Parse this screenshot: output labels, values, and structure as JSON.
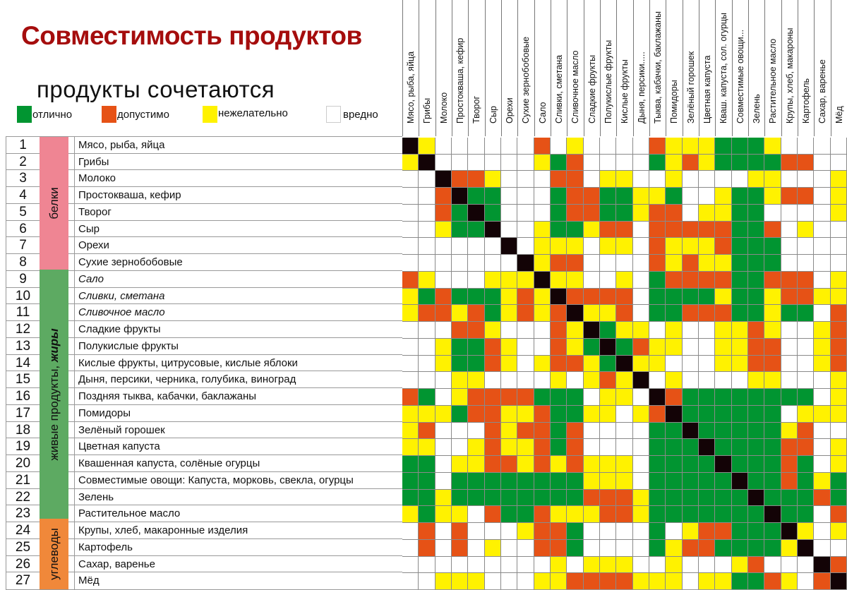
{
  "title": "Совместимость продуктов",
  "subtitle": "продукты сочетаются",
  "legend": [
    {
      "key": "G",
      "label": "отлично",
      "color": "#019531"
    },
    {
      "key": "O",
      "label": "допустимо",
      "color": "#e65216"
    },
    {
      "key": "Y",
      "label": "нежелательно",
      "color": "#fff200"
    },
    {
      "key": "W",
      "label": "вредно",
      "color": "#ffffff"
    }
  ],
  "diagonal_color": "#130306",
  "categories": [
    {
      "label": "белки",
      "rows": [
        1,
        8
      ],
      "color": "#ef8593"
    },
    {
      "label": "живые продукты, жиры",
      "label_plain": "живые продукты, ",
      "label_bold": "жиры",
      "rows": [
        9,
        23
      ],
      "color": "#5daa62"
    },
    {
      "label": "углеводы",
      "rows": [
        24,
        27
      ],
      "color": "#f0883a"
    }
  ],
  "rows": [
    {
      "n": "1",
      "name": "Мясо, рыба, яйца"
    },
    {
      "n": "2",
      "name": "Грибы"
    },
    {
      "n": "3",
      "name": "Молоко"
    },
    {
      "n": "4",
      "name": "Простокваша, кефир"
    },
    {
      "n": "5",
      "name": "Творог"
    },
    {
      "n": "6",
      "name": "Сыр"
    },
    {
      "n": "7",
      "name": "Орехи"
    },
    {
      "n": "8",
      "name": "Сухие зернобобовые"
    },
    {
      "n": "9",
      "name": "Сало",
      "italic": true
    },
    {
      "n": "10",
      "name": "Сливки, сметана",
      "italic": true
    },
    {
      "n": "11",
      "name": "Сливочное масло",
      "italic": true
    },
    {
      "n": "12",
      "name": "Сладкие фрукты"
    },
    {
      "n": "13",
      "name": "Полукислые фрукты"
    },
    {
      "n": "14",
      "name": "Кислые фрукты, цитрусовые, кислые яблоки"
    },
    {
      "n": "15",
      "name": "Дыня, персики, черника, голубика, виноград"
    },
    {
      "n": "16",
      "name": "Поздняя тыква, кабачки, баклажаны"
    },
    {
      "n": "17",
      "name": "Помидоры"
    },
    {
      "n": "18",
      "name": "Зелёный горошек"
    },
    {
      "n": "19",
      "name": "Цветная капуста"
    },
    {
      "n": "20",
      "name": "Квашенная капуста, солёные огурцы"
    },
    {
      "n": "21",
      "name": "Совместимые овощи: Капуста, морковь, свекла, огурцы"
    },
    {
      "n": "22",
      "name": "Зелень"
    },
    {
      "n": "23",
      "name": "Растительное масло"
    },
    {
      "n": "24",
      "name": "Крупы, хлеб, макаронные изделия"
    },
    {
      "n": "25",
      "name": "Картофель"
    },
    {
      "n": "26",
      "name": "Сахар, варенье"
    },
    {
      "n": "27",
      "name": "Мёд"
    }
  ],
  "columns": [
    "Мясо, рыба, яйца",
    "Грибы",
    "Молоко",
    "Простокваша, кефир",
    "Творог",
    "Сыр",
    "Орехи",
    "Сухие зернобобовые",
    "Сало",
    "Сливки, сметана",
    "Сливочное масло",
    "Сладкие фрукты",
    "Полукислые фрукты",
    "Кислые фрукты",
    "Дыня, персики.....",
    "Тыква, кабачки, баклажаны",
    "Помидоры",
    "Зелёный горошек",
    "Цветная капуста",
    "Кваш. капуста, сол. огурцы",
    "Совместимые овощи...",
    "Зелень",
    "Растительное масло",
    "Крупы, хлеб, макароны",
    "Картофель",
    "Сахар, варенье",
    "Мёд"
  ],
  "chart_data": {
    "type": "heatmap",
    "title": "Совместимость продуктов",
    "subtitle": "продукты сочетаются",
    "legend": {
      "G": "отлично",
      "O": "допустимо",
      "Y": "нежелательно",
      "W": "вредно",
      "K": "diagonal (same product)"
    },
    "row_labels": [
      "Мясо, рыба, яйца",
      "Грибы",
      "Молоко",
      "Простокваша, кефир",
      "Творог",
      "Сыр",
      "Орехи",
      "Сухие зернобобовые",
      "Сало",
      "Сливки, сметана",
      "Сливочное масло",
      "Сладкие фрукты",
      "Полукислые фрукты",
      "Кислые фрукты, цитрусовые, кислые яблоки",
      "Дыня, персики, черника, голубика, виноград",
      "Поздняя тыква, кабачки, баклажаны",
      "Помидоры",
      "Зелёный горошек",
      "Цветная капуста",
      "Квашенная капуста, солёные огурцы",
      "Совместимые овощи: Капуста, морковь, свекла, огурцы",
      "Зелень",
      "Растительное масло",
      "Крупы, хлеб, макаронные изделия",
      "Картофель",
      "Сахар, варенье",
      "Мёд"
    ],
    "matrix": [
      "KYWWWWWWOWYWWWWOYYYGGGYWWWW",
      "YKWWWWWWYGOWWWWGYOYGGGGOOWW",
      "WWKOOYWWWOOWYYWWYWWWWYYWWWY",
      "WWOKGGWWWGOOGGYYGWWYGGYOOWY",
      "WWOGKGWWWGOOGGYOOWYYGGWWWWY",
      "WWYGGKWWYGGYOOWOOOOOGGOWYWW",
      "WWWWWWKWYYYWYYWOYYYOGGGWWWW",
      "WWWWWWWKYOOWWWWOYOYYGGGWWWW",
      "OYWWWYYYKYYWWYWGOOOOGGOOOWY",
      "YGOGGGYOYKOOOOWGGGGYGGYOOYY",
      "YOOYOGYOYOKYYOWGGOOOGGYGGWO",
      "WWWOOYWWWOYKGYYWYWWYYOYWWYO",
      "WWYGGOYWWOYGKGOYYWWYYOOWWYO",
      "WWYGGOYWYOOYGKYYWWWYYOOWWYO",
      "WWWYYWWWWYWYOYKWYWWWWYYWWWY",
      "OGWYOOOOGGGWYYWKOGGGGGGGGWY",
      "YYYGOOYYOGGYYWYOKGGGGGGWYYY",
      "YOWWWOYOOGOWWWWGGKGGGGGYOWW",
      "YYWWYOYYOGOWWWWGGGKGGGGOOWY",
      "GGWYYOOYOYOYYYWGGGGKGGGOGWY",
      "GGWGGGGGGGGYYYWGGGGGKGGOGYG",
      "GGYGGGGGGGGOOOYGGGGGGKGGGOG",
      "YGYYWOGGOYYYOOYGGGGGGGKGGWO",
      "WOWOWWWYOOGWWWWGWYOOGGGKYWY",
      "WOWOWYWWOOGWWWWGYOOGGGGYKWW",
      "WWWWWWWWWYWYYYWWYWWWYOWWWKO",
      "WWYYYWWWYYOOOOYYYWYYGGOYWOK"
    ]
  }
}
